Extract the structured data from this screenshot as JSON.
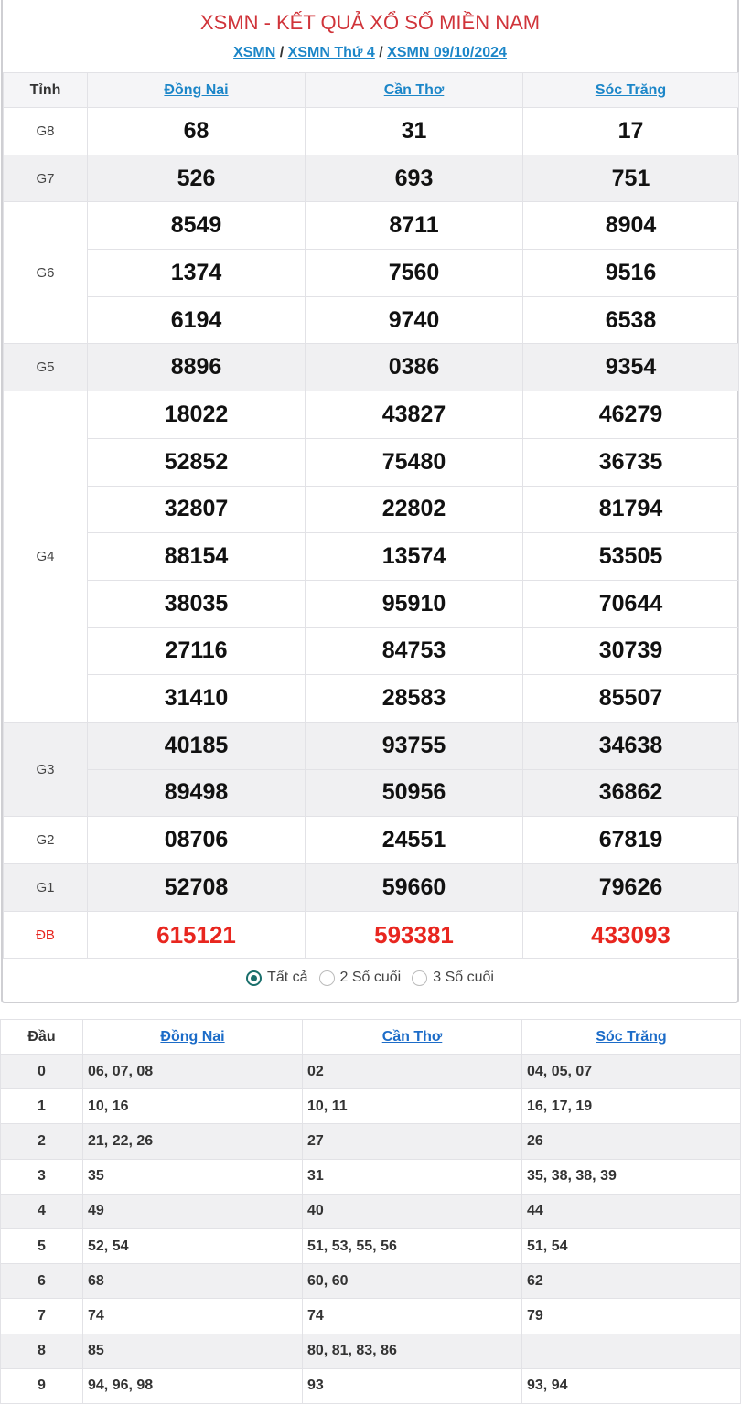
{
  "title": "XSMN - KẾT QUẢ XỔ SỐ MIỀN NAM",
  "breadcrumb": [
    "XSMN",
    "XSMN Thứ 4",
    "XSMN 09/10/2024"
  ],
  "results": {
    "label_header": "Tỉnh",
    "provinces": [
      "Đồng Nai",
      "Cần Thơ",
      "Sóc Trăng"
    ],
    "prizes": [
      {
        "label": "G8",
        "rows": [
          [
            "68",
            "31",
            "17"
          ]
        ]
      },
      {
        "label": "G7",
        "rows": [
          [
            "526",
            "693",
            "751"
          ]
        ]
      },
      {
        "label": "G6",
        "rows": [
          [
            "8549",
            "8711",
            "8904"
          ],
          [
            "1374",
            "7560",
            "9516"
          ],
          [
            "6194",
            "9740",
            "6538"
          ]
        ]
      },
      {
        "label": "G5",
        "rows": [
          [
            "8896",
            "0386",
            "9354"
          ]
        ]
      },
      {
        "label": "G4",
        "rows": [
          [
            "18022",
            "43827",
            "46279"
          ],
          [
            "52852",
            "75480",
            "36735"
          ],
          [
            "32807",
            "22802",
            "81794"
          ],
          [
            "88154",
            "13574",
            "53505"
          ],
          [
            "38035",
            "95910",
            "70644"
          ],
          [
            "27116",
            "84753",
            "30739"
          ],
          [
            "31410",
            "28583",
            "85507"
          ]
        ]
      },
      {
        "label": "G3",
        "rows": [
          [
            "40185",
            "93755",
            "34638"
          ],
          [
            "89498",
            "50956",
            "36862"
          ]
        ]
      },
      {
        "label": "G2",
        "rows": [
          [
            "08706",
            "24551",
            "67819"
          ]
        ]
      },
      {
        "label": "G1",
        "rows": [
          [
            "52708",
            "59660",
            "79626"
          ]
        ]
      },
      {
        "label": "ĐB",
        "rows": [
          [
            "615121",
            "593381",
            "433093"
          ]
        ]
      }
    ]
  },
  "filter": {
    "options": [
      "Tất cả",
      "2 Số cuối",
      "3 Số cuối"
    ],
    "selected": 0
  },
  "loto": {
    "head_header": "Đầu",
    "provinces": [
      "Đồng Nai",
      "Cần Thơ",
      "Sóc Trăng"
    ],
    "rows": [
      [
        "0",
        "06, 07, 08",
        "02",
        "04, 05, 07"
      ],
      [
        "1",
        "10, 16",
        "10, 11",
        "16, 17, 19"
      ],
      [
        "2",
        "21, 22, 26",
        "27",
        "26"
      ],
      [
        "3",
        "35",
        "31",
        "35, 38, 38, 39"
      ],
      [
        "4",
        "49",
        "40",
        "44"
      ],
      [
        "5",
        "52, 54",
        "51, 53, 55, 56",
        "51, 54"
      ],
      [
        "6",
        "68",
        "60, 60",
        "62"
      ],
      [
        "7",
        "74",
        "74",
        "79"
      ],
      [
        "8",
        "85",
        "80, 81, 83, 86",
        ""
      ],
      [
        "9",
        "94, 96, 98",
        "93",
        "93, 94"
      ]
    ]
  },
  "colors": {
    "title": "#d0343a",
    "link": "#1c86c8",
    "special": "#e8261f",
    "radio": "#1a6f6c"
  }
}
